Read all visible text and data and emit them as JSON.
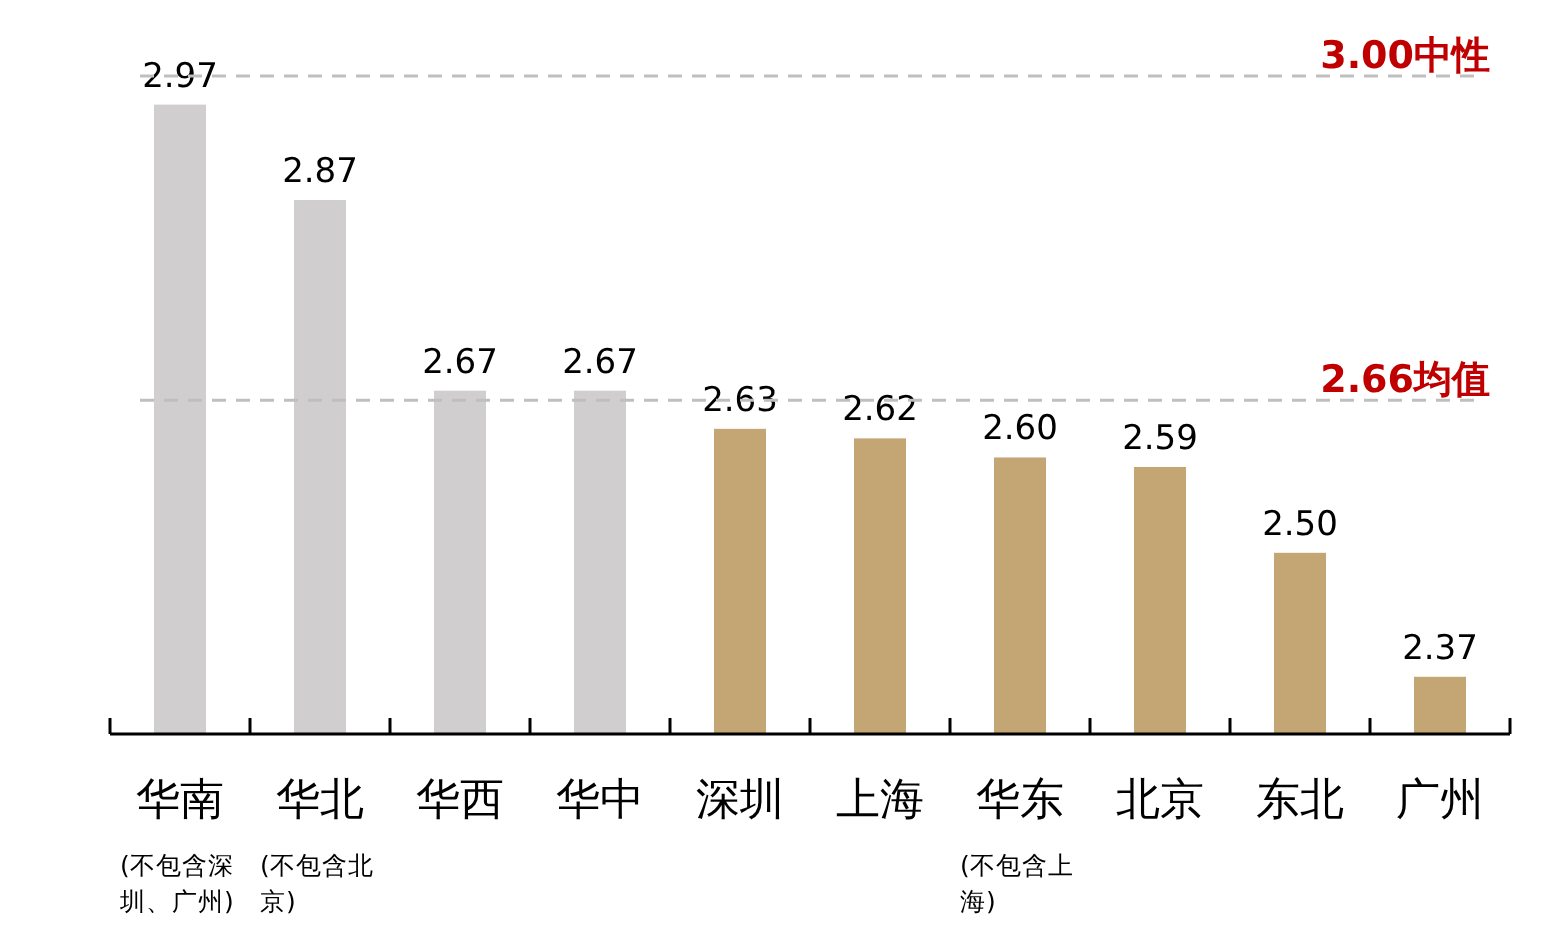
{
  "chart_data": {
    "type": "bar",
    "categories": [
      "华南(不包含深圳、广州)",
      "华北(不包含北京)",
      "华西",
      "华中",
      "深圳",
      "上海",
      "华东(不包含上海)",
      "北京",
      "东北",
      "广州"
    ],
    "values": [
      2.97,
      2.87,
      2.67,
      2.67,
      2.63,
      2.62,
      2.6,
      2.59,
      2.5,
      2.37
    ],
    "colors": [
      "#d0cece",
      "#d0cece",
      "#d0cece",
      "#d0cece",
      "#c4a574",
      "#c4a574",
      "#c4a574",
      "#c4a574",
      "#c4a574",
      "#c4a574"
    ],
    "ylim": [
      2.31,
      3.0
    ],
    "value_labels": [
      "2.97",
      "2.87",
      "2.67",
      "2.67",
      "2.63",
      "2.62",
      "2.60",
      "2.59",
      "2.50",
      "2.37"
    ],
    "tick_labels": "x",
    "data_labels": true,
    "ref_lines": [
      {
        "axis": "y",
        "value": 3.0,
        "label": "3.00中性",
        "color": "#bfbfbf",
        "line_style": "dashed"
      },
      {
        "axis": "y",
        "value": 2.66,
        "label": "2.66均值",
        "color": "#bfbfbf",
        "line_style": "dashed"
      }
    ]
  }
}
